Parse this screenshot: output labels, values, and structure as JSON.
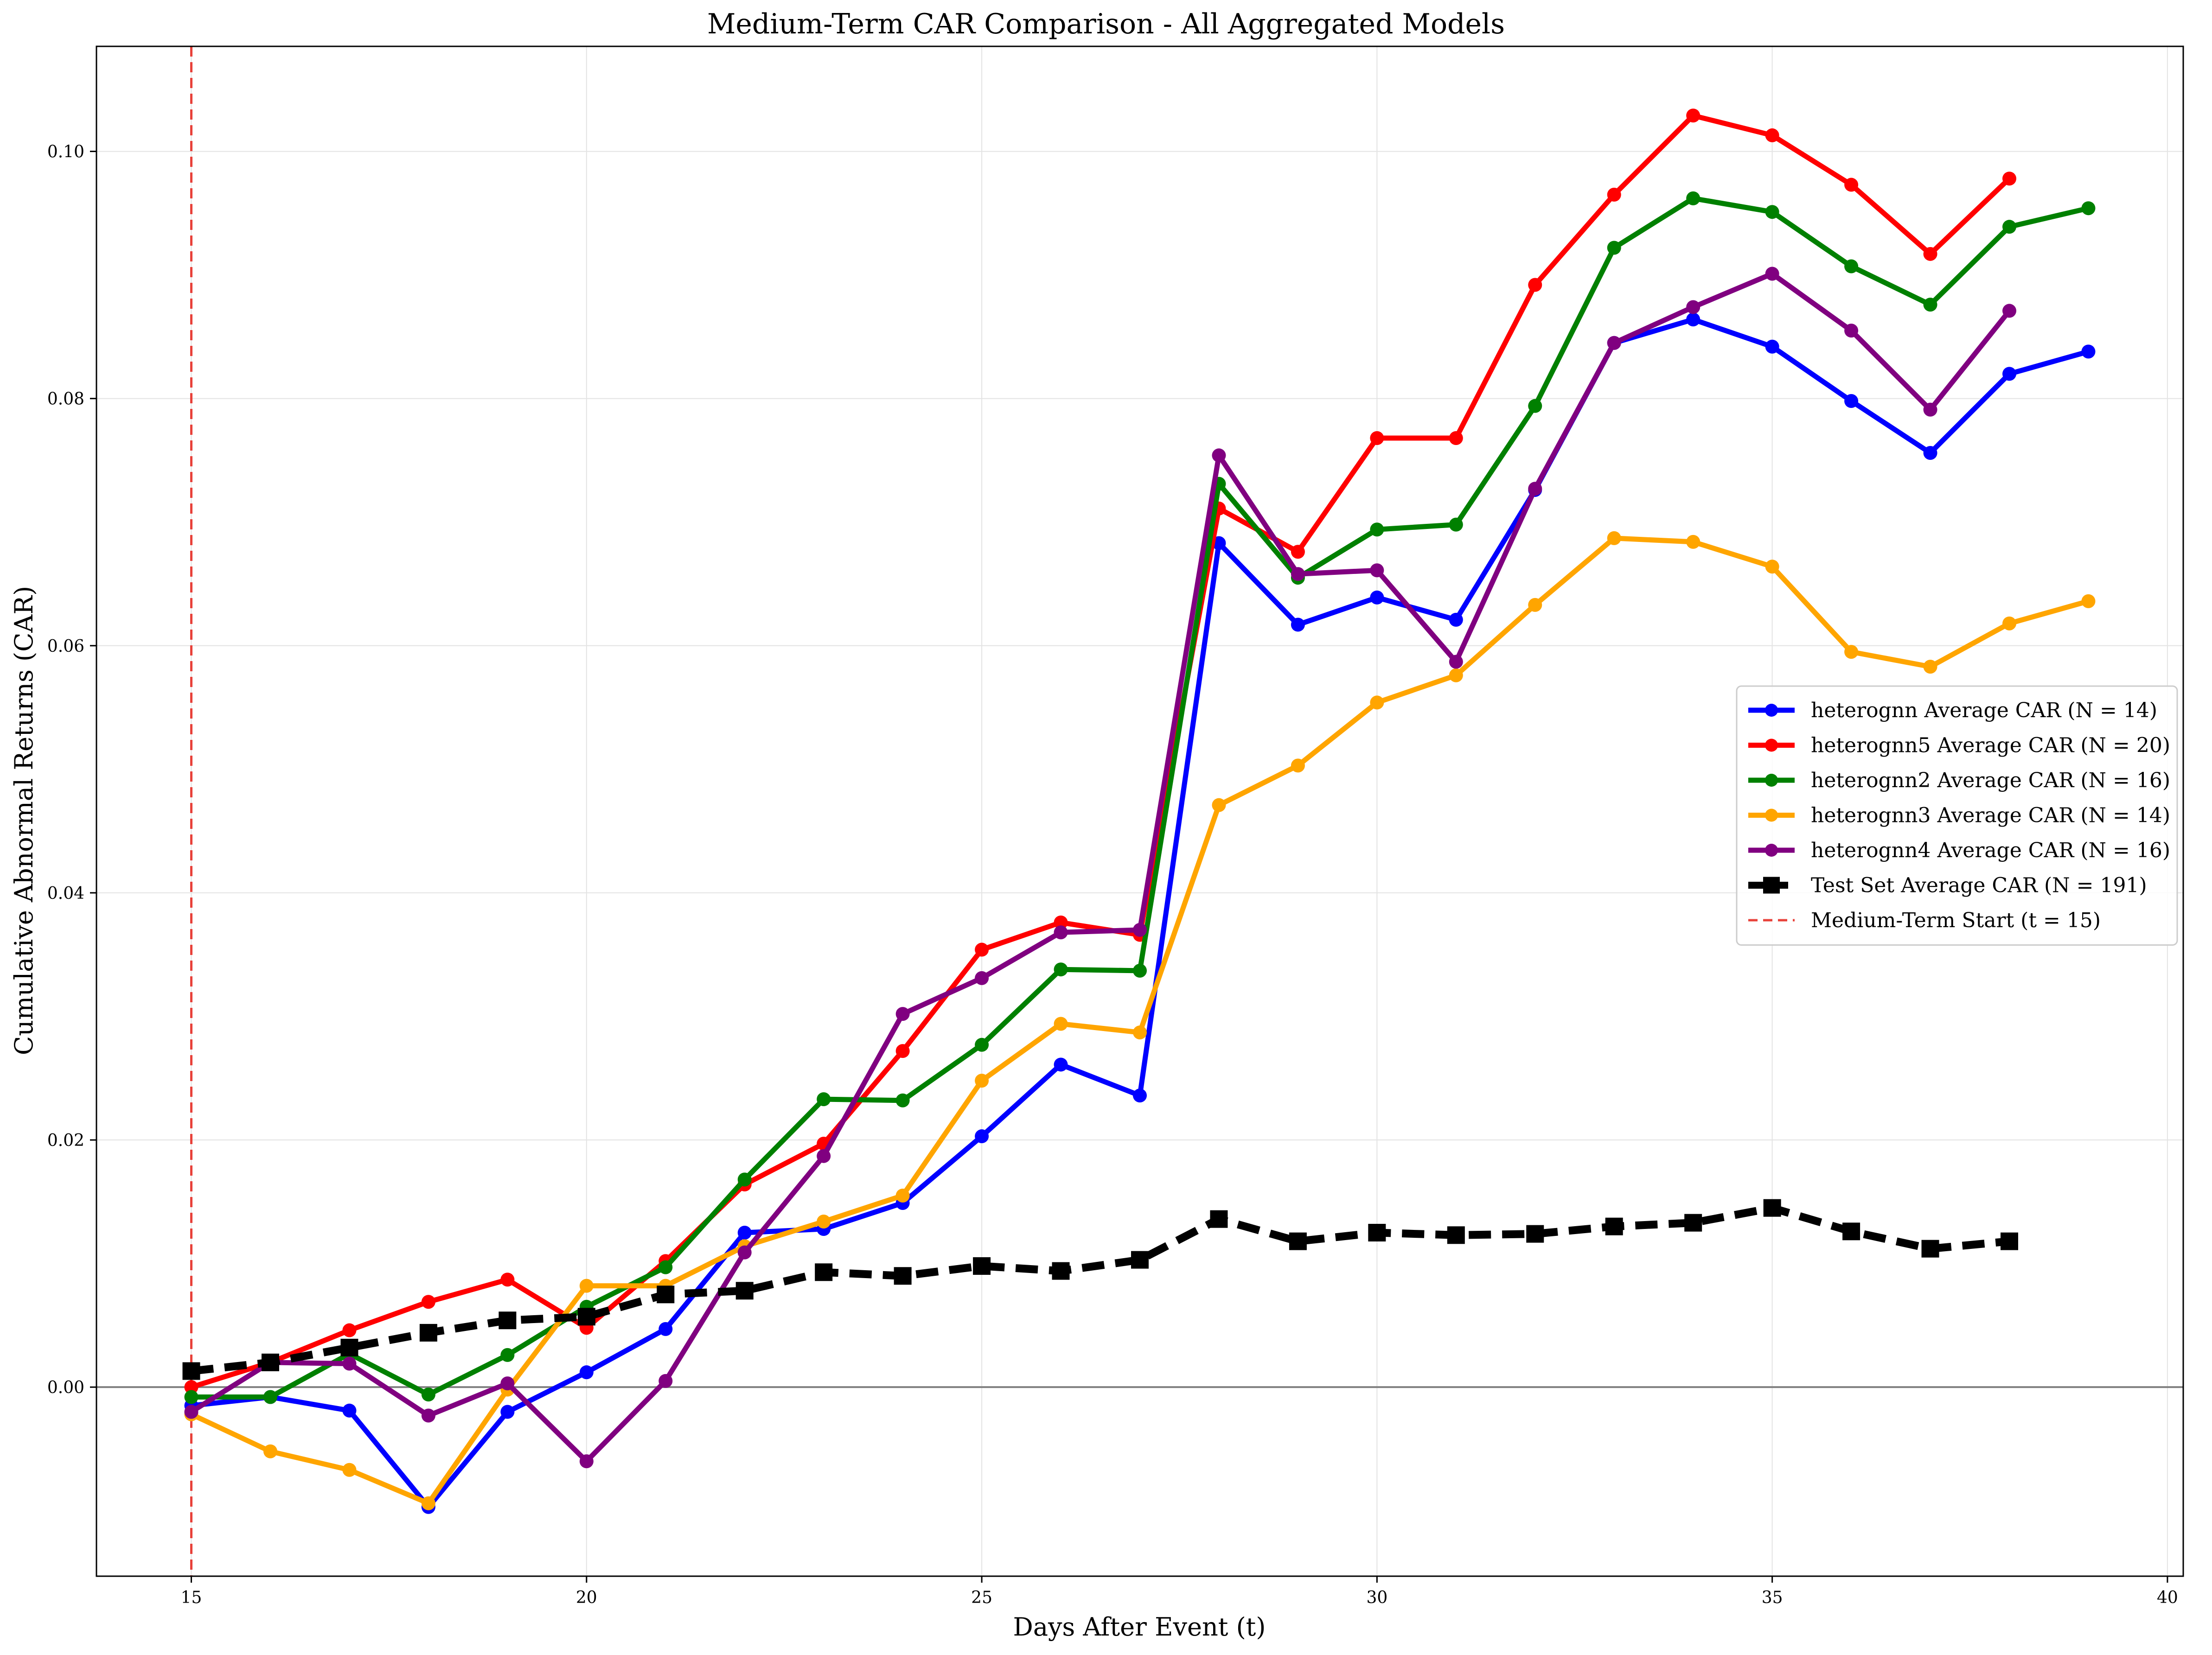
{
  "chart_data": {
    "type": "line",
    "title": "Medium-Term CAR Comparison - All Aggregated Models",
    "xlabel": "Days After Event (t)",
    "ylabel": "Cumulative Abnormal Returns (CAR)",
    "xlim": [
      13.8,
      40.2
    ],
    "ylim": [
      -0.0153,
      0.1085
    ],
    "x_ticks": [
      15,
      20,
      25,
      30,
      35,
      40
    ],
    "y_ticks": [
      0.0,
      0.02,
      0.04,
      0.06,
      0.08,
      0.1
    ],
    "x_tick_labels": [
      "15",
      "20",
      "25",
      "30",
      "35",
      "40"
    ],
    "y_tick_labels": [
      "0.00",
      "0.02",
      "0.04",
      "0.06",
      "0.08",
      "0.10"
    ],
    "grid": true,
    "legend_position": "center-right",
    "zero_line": {
      "y": 0,
      "color": "#808080"
    },
    "series": [
      {
        "name": "heterognn Average CAR (N = 14)",
        "color": "#0000ff",
        "style": "solid",
        "marker": "circle",
        "x": [
          15,
          16,
          17,
          18,
          19,
          20,
          21,
          22,
          23,
          24,
          25,
          26,
          27,
          28,
          29,
          30,
          31,
          32,
          33,
          34,
          35,
          36,
          37,
          38,
          39
        ],
        "values": [
          -0.0015,
          -0.0008,
          -0.0019,
          -0.0097,
          -0.002,
          0.0012,
          0.0047,
          0.0125,
          0.0128,
          0.0149,
          0.0203,
          0.0261,
          0.0236,
          0.0683,
          0.0617,
          0.0639,
          0.0621,
          0.0726,
          0.0845,
          0.0864,
          0.0842,
          0.0798,
          0.0756,
          0.082,
          0.0838
        ]
      },
      {
        "name": "heterognn5 Average CAR (N = 20)",
        "color": "#ff0000",
        "style": "solid",
        "marker": "circle",
        "x": [
          15,
          16,
          17,
          18,
          19,
          20,
          21,
          22,
          23,
          24,
          25,
          26,
          27,
          28,
          29,
          30,
          31,
          32,
          33,
          34,
          35,
          36,
          37,
          38
        ],
        "values": [
          0.0,
          0.002,
          0.0046,
          0.0069,
          0.0087,
          0.0048,
          0.0102,
          0.0164,
          0.0197,
          0.0272,
          0.0354,
          0.0376,
          0.0366,
          0.0711,
          0.0676,
          0.0768,
          0.0768,
          0.0892,
          0.0965,
          0.1029,
          0.1013,
          0.0973,
          0.0917,
          0.0978
        ]
      },
      {
        "name": "heterognn2 Average CAR (N = 16)",
        "color": "#008000",
        "style": "solid",
        "marker": "circle",
        "x": [
          15,
          16,
          17,
          18,
          19,
          20,
          21,
          22,
          23,
          24,
          25,
          26,
          27,
          28,
          29,
          30,
          31,
          32,
          33,
          34,
          35,
          36,
          37,
          38,
          39
        ],
        "values": [
          -0.0008,
          -0.0008,
          0.0027,
          -0.0006,
          0.0026,
          0.0065,
          0.0097,
          0.0168,
          0.0233,
          0.0232,
          0.0277,
          0.0338,
          0.0337,
          0.0731,
          0.0655,
          0.0694,
          0.0698,
          0.0794,
          0.0922,
          0.0962,
          0.0951,
          0.0907,
          0.0876,
          0.0939,
          0.0954
        ]
      },
      {
        "name": "heterognn3 Average CAR (N = 14)",
        "color": "#ffa500",
        "style": "solid",
        "marker": "circle",
        "x": [
          15,
          16,
          17,
          18,
          19,
          20,
          21,
          22,
          23,
          24,
          25,
          26,
          27,
          28,
          29,
          30,
          31,
          32,
          33,
          34,
          35,
          36,
          37,
          38,
          39
        ],
        "values": [
          -0.0022,
          -0.0052,
          -0.0067,
          -0.0094,
          -0.0002,
          0.0082,
          0.0082,
          0.0114,
          0.0134,
          0.0155,
          0.0248,
          0.0294,
          0.0287,
          0.0471,
          0.0503,
          0.0554,
          0.0576,
          0.0633,
          0.0687,
          0.0684,
          0.0664,
          0.0595,
          0.0583,
          0.0618,
          0.0636
        ]
      },
      {
        "name": "heterognn4 Average CAR (N = 16)",
        "color": "#800080",
        "style": "solid",
        "marker": "circle",
        "x": [
          15,
          16,
          17,
          18,
          19,
          20,
          21,
          22,
          23,
          24,
          25,
          26,
          27,
          28,
          29,
          30,
          31,
          32,
          33,
          34,
          35,
          36,
          37,
          38
        ],
        "values": [
          -0.002,
          0.002,
          0.0019,
          -0.0023,
          0.0003,
          -0.006,
          0.0005,
          0.0109,
          0.0187,
          0.0302,
          0.0331,
          0.0368,
          0.037,
          0.0754,
          0.0658,
          0.0661,
          0.0587,
          0.0727,
          0.0845,
          0.0874,
          0.0901,
          0.0855,
          0.0791,
          0.0871
        ]
      },
      {
        "name": "Test Set Average CAR (N = 191)",
        "color": "#000000",
        "style": "dashed",
        "marker": "square",
        "x": [
          15,
          16,
          17,
          18,
          19,
          20,
          21,
          22,
          23,
          24,
          25,
          26,
          27,
          28,
          29,
          30,
          31,
          32,
          33,
          34,
          35,
          36,
          37,
          38
        ],
        "values": [
          0.0013,
          0.002,
          0.0032,
          0.0044,
          0.0054,
          0.0057,
          0.0075,
          0.0078,
          0.0093,
          0.009,
          0.0098,
          0.0094,
          0.0103,
          0.0136,
          0.0118,
          0.0125,
          0.0123,
          0.0124,
          0.013,
          0.0133,
          0.0145,
          0.0126,
          0.0112,
          0.0118
        ]
      }
    ],
    "vertical_line": {
      "name": "Medium-Term Start (t = 15)",
      "x": 15,
      "color": "#e8413a",
      "style": "dashed"
    }
  }
}
